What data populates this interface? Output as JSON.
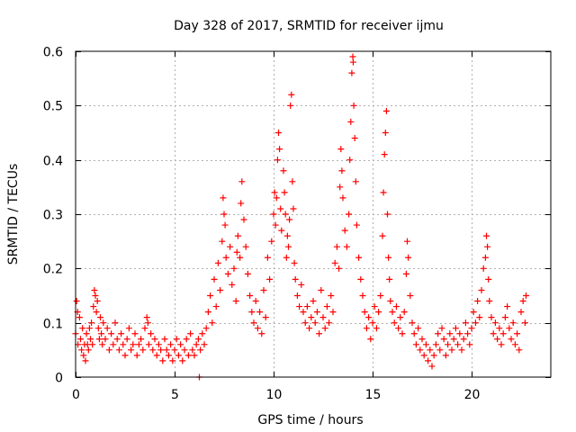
{
  "chart_data": {
    "type": "scatter",
    "title": "Day 328 of 2017, SRMTID for receiver ijmu",
    "xlabel": "GPS time / hours",
    "ylabel": "SRMTID / TECUs",
    "xlim": [
      0,
      24
    ],
    "ylim": [
      0,
      0.6
    ],
    "xticks": [
      0,
      5,
      10,
      15,
      20
    ],
    "xtick_labels": [
      "0",
      "5",
      "10",
      "15",
      "20"
    ],
    "yticks": [
      0,
      0.1,
      0.2,
      0.3,
      0.4,
      0.5,
      0.6
    ],
    "ytick_labels": [
      "0",
      "0.1",
      "0.2",
      "0.3",
      "0.4",
      "0.5",
      "0.6"
    ],
    "grid": true,
    "marker": "+",
    "series": [
      {
        "name": "SRMTID",
        "color": "#ff0000",
        "points": [
          [
            0.0,
            0.08
          ],
          [
            0.05,
            0.14
          ],
          [
            0.1,
            0.12
          ],
          [
            0.12,
            0.06
          ],
          [
            0.2,
            0.11
          ],
          [
            0.25,
            0.07
          ],
          [
            0.3,
            0.05
          ],
          [
            0.35,
            0.09
          ],
          [
            0.4,
            0.04
          ],
          [
            0.45,
            0.06
          ],
          [
            0.5,
            0.03
          ],
          [
            0.55,
            0.08
          ],
          [
            0.6,
            0.06
          ],
          [
            0.65,
            0.05
          ],
          [
            0.7,
            0.09
          ],
          [
            0.75,
            0.07
          ],
          [
            0.8,
            0.1
          ],
          [
            0.85,
            0.06
          ],
          [
            0.9,
            0.13
          ],
          [
            0.95,
            0.16
          ],
          [
            1.0,
            0.15
          ],
          [
            1.05,
            0.12
          ],
          [
            1.1,
            0.14
          ],
          [
            1.15,
            0.09
          ],
          [
            1.2,
            0.07
          ],
          [
            1.25,
            0.11
          ],
          [
            1.3,
            0.08
          ],
          [
            1.35,
            0.06
          ],
          [
            1.4,
            0.1
          ],
          [
            1.5,
            0.07
          ],
          [
            1.6,
            0.09
          ],
          [
            1.7,
            0.05
          ],
          [
            1.8,
            0.08
          ],
          [
            1.9,
            0.06
          ],
          [
            2.0,
            0.1
          ],
          [
            2.1,
            0.07
          ],
          [
            2.2,
            0.05
          ],
          [
            2.3,
            0.08
          ],
          [
            2.4,
            0.06
          ],
          [
            2.5,
            0.04
          ],
          [
            2.6,
            0.07
          ],
          [
            2.7,
            0.09
          ],
          [
            2.8,
            0.05
          ],
          [
            2.9,
            0.06
          ],
          [
            3.0,
            0.08
          ],
          [
            3.1,
            0.04
          ],
          [
            3.2,
            0.06
          ],
          [
            3.3,
            0.07
          ],
          [
            3.4,
            0.05
          ],
          [
            3.5,
            0.09
          ],
          [
            3.6,
            0.11
          ],
          [
            3.65,
            0.1
          ],
          [
            3.7,
            0.06
          ],
          [
            3.8,
            0.08
          ],
          [
            3.9,
            0.05
          ],
          [
            4.0,
            0.07
          ],
          [
            4.1,
            0.04
          ],
          [
            4.2,
            0.06
          ],
          [
            4.3,
            0.05
          ],
          [
            4.4,
            0.03
          ],
          [
            4.5,
            0.07
          ],
          [
            4.6,
            0.05
          ],
          [
            4.7,
            0.04
          ],
          [
            4.8,
            0.06
          ],
          [
            4.9,
            0.03
          ],
          [
            5.0,
            0.05
          ],
          [
            5.1,
            0.07
          ],
          [
            5.2,
            0.04
          ],
          [
            5.3,
            0.06
          ],
          [
            5.4,
            0.03
          ],
          [
            5.5,
            0.05
          ],
          [
            5.6,
            0.07
          ],
          [
            5.7,
            0.04
          ],
          [
            5.8,
            0.08
          ],
          [
            5.9,
            0.05
          ],
          [
            6.0,
            0.04
          ],
          [
            6.1,
            0.06
          ],
          [
            6.2,
            0.07
          ],
          [
            6.25,
            0.0
          ],
          [
            6.3,
            0.05
          ],
          [
            6.4,
            0.08
          ],
          [
            6.5,
            0.06
          ],
          [
            6.6,
            0.09
          ],
          [
            6.7,
            0.12
          ],
          [
            6.8,
            0.15
          ],
          [
            6.9,
            0.1
          ],
          [
            7.0,
            0.18
          ],
          [
            7.1,
            0.13
          ],
          [
            7.2,
            0.21
          ],
          [
            7.3,
            0.16
          ],
          [
            7.4,
            0.25
          ],
          [
            7.45,
            0.33
          ],
          [
            7.5,
            0.3
          ],
          [
            7.55,
            0.28
          ],
          [
            7.6,
            0.22
          ],
          [
            7.7,
            0.19
          ],
          [
            7.8,
            0.24
          ],
          [
            7.9,
            0.17
          ],
          [
            8.0,
            0.2
          ],
          [
            8.1,
            0.14
          ],
          [
            8.15,
            0.23
          ],
          [
            8.2,
            0.26
          ],
          [
            8.3,
            0.22
          ],
          [
            8.35,
            0.32
          ],
          [
            8.4,
            0.36
          ],
          [
            8.5,
            0.29
          ],
          [
            8.6,
            0.24
          ],
          [
            8.7,
            0.19
          ],
          [
            8.8,
            0.15
          ],
          [
            8.9,
            0.12
          ],
          [
            9.0,
            0.1
          ],
          [
            9.1,
            0.14
          ],
          [
            9.2,
            0.09
          ],
          [
            9.3,
            0.12
          ],
          [
            9.4,
            0.08
          ],
          [
            9.5,
            0.16
          ],
          [
            9.6,
            0.11
          ],
          [
            9.7,
            0.22
          ],
          [
            9.8,
            0.18
          ],
          [
            9.9,
            0.25
          ],
          [
            10.0,
            0.3
          ],
          [
            10.05,
            0.34
          ],
          [
            10.1,
            0.28
          ],
          [
            10.15,
            0.33
          ],
          [
            10.2,
            0.4
          ],
          [
            10.25,
            0.45
          ],
          [
            10.3,
            0.42
          ],
          [
            10.35,
            0.31
          ],
          [
            10.4,
            0.27
          ],
          [
            10.5,
            0.38
          ],
          [
            10.55,
            0.34
          ],
          [
            10.6,
            0.3
          ],
          [
            10.65,
            0.22
          ],
          [
            10.7,
            0.26
          ],
          [
            10.75,
            0.24
          ],
          [
            10.8,
            0.29
          ],
          [
            10.85,
            0.5
          ],
          [
            10.9,
            0.52
          ],
          [
            10.95,
            0.36
          ],
          [
            11.0,
            0.31
          ],
          [
            11.05,
            0.21
          ],
          [
            11.1,
            0.18
          ],
          [
            11.2,
            0.15
          ],
          [
            11.3,
            0.13
          ],
          [
            11.4,
            0.17
          ],
          [
            11.5,
            0.12
          ],
          [
            11.6,
            0.1
          ],
          [
            11.7,
            0.13
          ],
          [
            11.8,
            0.09
          ],
          [
            11.9,
            0.11
          ],
          [
            12.0,
            0.14
          ],
          [
            12.1,
            0.1
          ],
          [
            12.2,
            0.12
          ],
          [
            12.3,
            0.08
          ],
          [
            12.4,
            0.16
          ],
          [
            12.5,
            0.11
          ],
          [
            12.6,
            0.09
          ],
          [
            12.7,
            0.13
          ],
          [
            12.8,
            0.1
          ],
          [
            12.9,
            0.15
          ],
          [
            13.0,
            0.12
          ],
          [
            13.1,
            0.21
          ],
          [
            13.2,
            0.24
          ],
          [
            13.3,
            0.2
          ],
          [
            13.35,
            0.35
          ],
          [
            13.4,
            0.42
          ],
          [
            13.45,
            0.38
          ],
          [
            13.5,
            0.33
          ],
          [
            13.6,
            0.27
          ],
          [
            13.7,
            0.24
          ],
          [
            13.8,
            0.3
          ],
          [
            13.85,
            0.4
          ],
          [
            13.9,
            0.47
          ],
          [
            13.95,
            0.56
          ],
          [
            14.0,
            0.59
          ],
          [
            14.02,
            0.58
          ],
          [
            14.05,
            0.5
          ],
          [
            14.1,
            0.44
          ],
          [
            14.15,
            0.36
          ],
          [
            14.2,
            0.28
          ],
          [
            14.3,
            0.22
          ],
          [
            14.4,
            0.18
          ],
          [
            14.5,
            0.15
          ],
          [
            14.6,
            0.12
          ],
          [
            14.7,
            0.09
          ],
          [
            14.8,
            0.11
          ],
          [
            14.9,
            0.07
          ],
          [
            15.0,
            0.1
          ],
          [
            15.1,
            0.13
          ],
          [
            15.2,
            0.09
          ],
          [
            15.3,
            0.12
          ],
          [
            15.4,
            0.15
          ],
          [
            15.5,
            0.26
          ],
          [
            15.55,
            0.34
          ],
          [
            15.6,
            0.41
          ],
          [
            15.65,
            0.45
          ],
          [
            15.7,
            0.49
          ],
          [
            15.75,
            0.3
          ],
          [
            15.8,
            0.22
          ],
          [
            15.85,
            0.18
          ],
          [
            15.9,
            0.14
          ],
          [
            16.0,
            0.12
          ],
          [
            16.1,
            0.1
          ],
          [
            16.2,
            0.13
          ],
          [
            16.3,
            0.09
          ],
          [
            16.4,
            0.11
          ],
          [
            16.5,
            0.08
          ],
          [
            16.6,
            0.12
          ],
          [
            16.7,
            0.19
          ],
          [
            16.75,
            0.25
          ],
          [
            16.8,
            0.22
          ],
          [
            16.9,
            0.15
          ],
          [
            17.0,
            0.1
          ],
          [
            17.1,
            0.08
          ],
          [
            17.2,
            0.06
          ],
          [
            17.3,
            0.09
          ],
          [
            17.4,
            0.05
          ],
          [
            17.5,
            0.07
          ],
          [
            17.6,
            0.04
          ],
          [
            17.7,
            0.06
          ],
          [
            17.8,
            0.03
          ],
          [
            17.9,
            0.05
          ],
          [
            18.0,
            0.02
          ],
          [
            18.1,
            0.04
          ],
          [
            18.2,
            0.06
          ],
          [
            18.3,
            0.08
          ],
          [
            18.4,
            0.05
          ],
          [
            18.5,
            0.09
          ],
          [
            18.6,
            0.07
          ],
          [
            18.7,
            0.04
          ],
          [
            18.8,
            0.06
          ],
          [
            18.9,
            0.08
          ],
          [
            19.0,
            0.05
          ],
          [
            19.1,
            0.07
          ],
          [
            19.2,
            0.09
          ],
          [
            19.3,
            0.06
          ],
          [
            19.4,
            0.08
          ],
          [
            19.5,
            0.05
          ],
          [
            19.6,
            0.07
          ],
          [
            19.7,
            0.1
          ],
          [
            19.8,
            0.08
          ],
          [
            19.9,
            0.06
          ],
          [
            20.0,
            0.09
          ],
          [
            20.1,
            0.12
          ],
          [
            20.2,
            0.1
          ],
          [
            20.3,
            0.14
          ],
          [
            20.4,
            0.11
          ],
          [
            20.5,
            0.16
          ],
          [
            20.6,
            0.2
          ],
          [
            20.7,
            0.22
          ],
          [
            20.75,
            0.26
          ],
          [
            20.8,
            0.24
          ],
          [
            20.85,
            0.18
          ],
          [
            20.9,
            0.14
          ],
          [
            21.0,
            0.11
          ],
          [
            21.1,
            0.08
          ],
          [
            21.2,
            0.1
          ],
          [
            21.3,
            0.07
          ],
          [
            21.4,
            0.09
          ],
          [
            21.5,
            0.06
          ],
          [
            21.6,
            0.08
          ],
          [
            21.7,
            0.11
          ],
          [
            21.8,
            0.13
          ],
          [
            21.9,
            0.09
          ],
          [
            22.0,
            0.07
          ],
          [
            22.1,
            0.1
          ],
          [
            22.2,
            0.06
          ],
          [
            22.3,
            0.08
          ],
          [
            22.4,
            0.05
          ],
          [
            22.5,
            0.12
          ],
          [
            22.6,
            0.14
          ],
          [
            22.7,
            0.1
          ],
          [
            22.75,
            0.15
          ]
        ]
      }
    ]
  }
}
